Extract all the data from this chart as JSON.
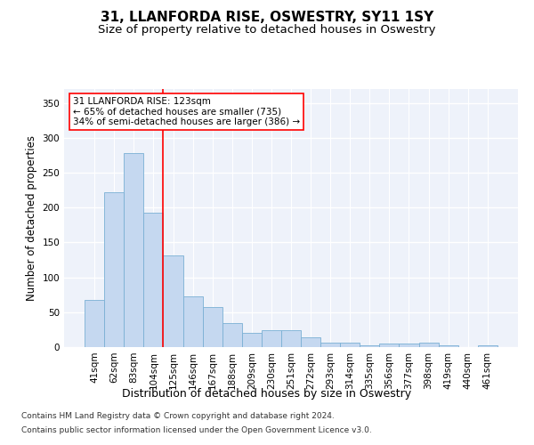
{
  "title_line1": "31, LLANFORDA RISE, OSWESTRY, SY11 1SY",
  "title_line2": "Size of property relative to detached houses in Oswestry",
  "xlabel": "Distribution of detached houses by size in Oswestry",
  "ylabel": "Number of detached properties",
  "categories": [
    "41sqm",
    "62sqm",
    "83sqm",
    "104sqm",
    "125sqm",
    "146sqm",
    "167sqm",
    "188sqm",
    "209sqm",
    "230sqm",
    "251sqm",
    "272sqm",
    "293sqm",
    "314sqm",
    "335sqm",
    "356sqm",
    "377sqm",
    "398sqm",
    "419sqm",
    "440sqm",
    "461sqm"
  ],
  "values": [
    68,
    222,
    278,
    193,
    132,
    73,
    57,
    35,
    21,
    24,
    24,
    14,
    6,
    7,
    3,
    5,
    5,
    7,
    3,
    0,
    2
  ],
  "bar_color": "#c5d8f0",
  "bar_edge_color": "#7ab0d4",
  "red_line_index": 4,
  "ylim": [
    0,
    370
  ],
  "yticks": [
    0,
    50,
    100,
    150,
    200,
    250,
    300,
    350
  ],
  "annotation_text": "31 LLANFORDA RISE: 123sqm\n← 65% of detached houses are smaller (735)\n34% of semi-detached houses are larger (386) →",
  "footer_line1": "Contains HM Land Registry data © Crown copyright and database right 2024.",
  "footer_line2": "Contains public sector information licensed under the Open Government Licence v3.0.",
  "background_color": "#eef2fa",
  "grid_color": "#ffffff",
  "title1_fontsize": 11,
  "title2_fontsize": 9.5,
  "xlabel_fontsize": 9,
  "ylabel_fontsize": 8.5,
  "tick_fontsize": 7.5,
  "annotation_fontsize": 7.5,
  "footer_fontsize": 6.5
}
